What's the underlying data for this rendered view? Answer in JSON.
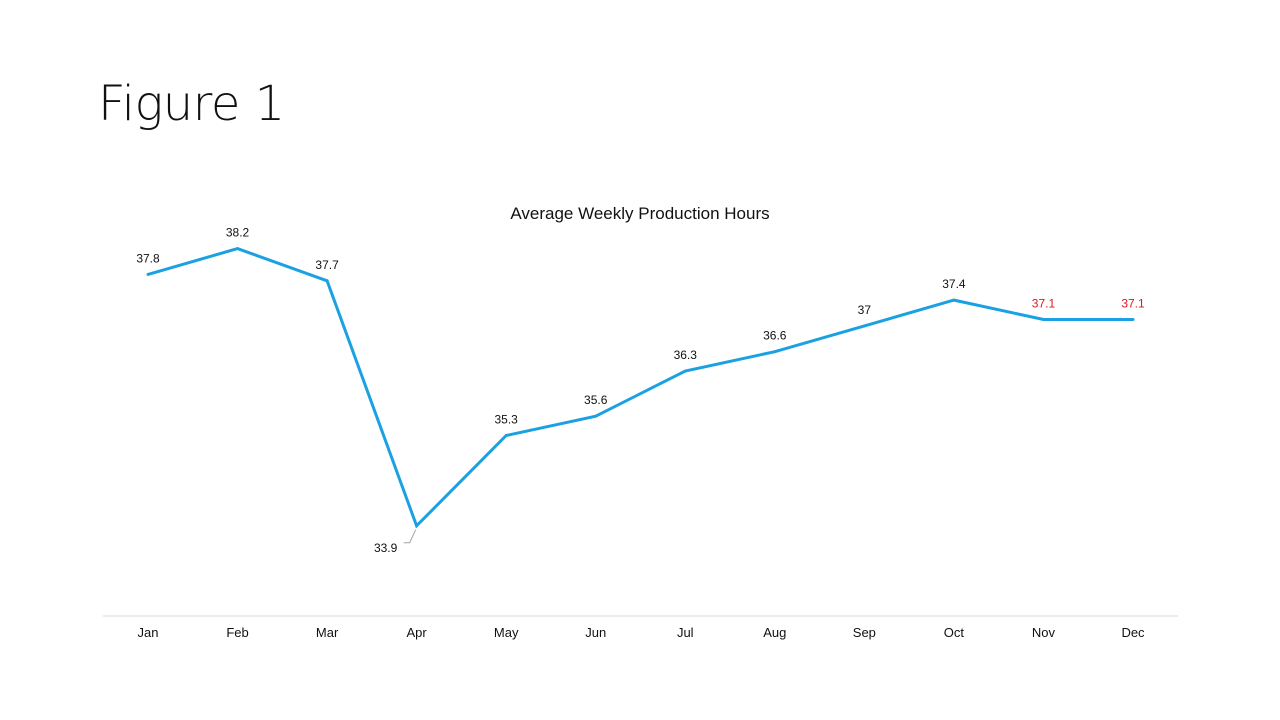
{
  "slide": {
    "title": "Figure 1"
  },
  "chart_data": {
    "type": "line",
    "title": "Average Weekly Production Hours",
    "xlabel": "",
    "ylabel": "",
    "categories": [
      "Jan",
      "Feb",
      "Mar",
      "Apr",
      "May",
      "Jun",
      "Jul",
      "Aug",
      "Sep",
      "Oct",
      "Nov",
      "Dec"
    ],
    "series": [
      {
        "values": [
          37.8,
          38.2,
          37.7,
          33.9,
          35.3,
          35.6,
          36.3,
          36.6,
          37,
          37.4,
          37.1,
          37.1
        ],
        "color": "#1BA1E2"
      }
    ],
    "data_labels": [
      "37.8",
      "38.2",
      "37.7",
      "33.9",
      "35.3",
      "35.6",
      "36.3",
      "36.6",
      "37",
      "37.4",
      "37.1",
      "37.1"
    ],
    "label_colors": [
      "#111111",
      "#111111",
      "#111111",
      "#111111",
      "#111111",
      "#111111",
      "#111111",
      "#111111",
      "#111111",
      "#111111",
      "#E0141E",
      "#E0141E"
    ],
    "ylim": [
      32.5,
      39
    ],
    "grid": false,
    "legend": "none"
  }
}
